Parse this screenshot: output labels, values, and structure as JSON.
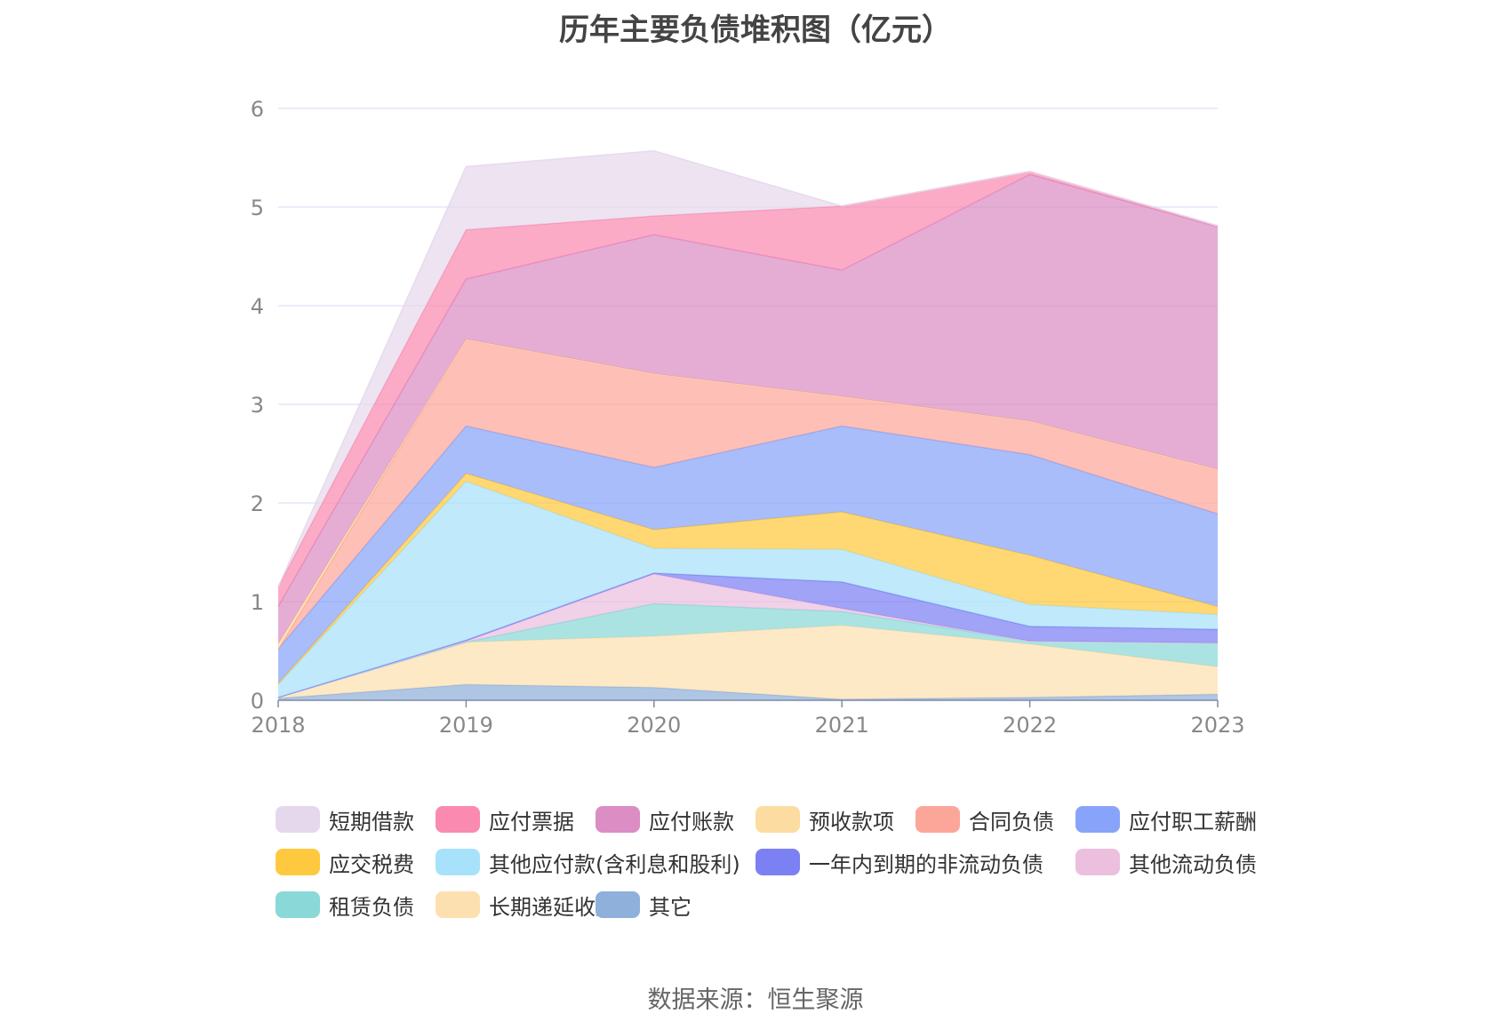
{
  "chart_data": {
    "type": "area",
    "title": "历年主要负债堆积图（亿元）",
    "source": "数据来源：恒生聚源",
    "x": [
      "2018",
      "2019",
      "2020",
      "2021",
      "2022",
      "2023"
    ],
    "ylim": [
      0,
      6
    ],
    "yticks": [
      "0",
      "1",
      "2",
      "3",
      "4",
      "5",
      "6"
    ],
    "grid": true,
    "legend_position": "bottom",
    "series": [
      {
        "name": "其它",
        "color": "#8fb0da",
        "values": [
          0.02,
          0.16,
          0.13,
          0.01,
          0.03,
          0.06
        ]
      },
      {
        "name": "长期递延收益",
        "color": "#fde0b0",
        "values": [
          0.01,
          0.43,
          0.52,
          0.75,
          0.54,
          0.28
        ]
      },
      {
        "name": "租赁负债",
        "color": "#8ad8d8",
        "values": [
          0.0,
          0.0,
          0.33,
          0.14,
          0.03,
          0.24
        ]
      },
      {
        "name": "其他流动负债",
        "color": "#ecbfdf",
        "values": [
          0.0,
          0.01,
          0.3,
          0.03,
          0.0,
          0.0
        ]
      },
      {
        "name": "一年内到期的非流动负债",
        "color": "#7b80f2",
        "values": [
          0.0,
          0.01,
          0.01,
          0.27,
          0.15,
          0.14
        ]
      },
      {
        "name": "其他应付款(含利息和股利)",
        "color": "#a8e2fa",
        "values": [
          0.13,
          1.61,
          0.25,
          0.33,
          0.22,
          0.15
        ]
      },
      {
        "name": "应交税费",
        "color": "#ffc93f",
        "values": [
          0.01,
          0.08,
          0.19,
          0.38,
          0.5,
          0.08
        ]
      },
      {
        "name": "应付职工薪酬",
        "color": "#88a4fa",
        "values": [
          0.35,
          0.48,
          0.63,
          0.87,
          1.02,
          0.94
        ]
      },
      {
        "name": "合同负债",
        "color": "#fca69a",
        "values": [
          0.0,
          0.88,
          0.95,
          0.3,
          0.34,
          0.45
        ]
      },
      {
        "name": "预收款项",
        "color": "#fcdca0",
        "values": [
          0.05,
          0.0,
          0.0,
          0.0,
          0.0,
          0.0
        ]
      },
      {
        "name": "应付账款",
        "color": "#db8dc4",
        "values": [
          0.38,
          0.61,
          1.41,
          1.28,
          2.5,
          2.46
        ]
      },
      {
        "name": "应付票据",
        "color": "#fa8ab0",
        "values": [
          0.2,
          0.5,
          0.19,
          0.65,
          0.03,
          0.01
        ]
      },
      {
        "name": "短期借款",
        "color": "#e6d8ec",
        "values": [
          0.0,
          0.64,
          0.66,
          0.0,
          0.0,
          0.0
        ]
      }
    ],
    "legend_order": [
      "短期借款",
      "应付票据",
      "应付账款",
      "预收款项",
      "合同负债",
      "应付职工薪酬",
      "应交税费",
      "其他应付款(含利息和股利)",
      "一年内到期的非流动负债",
      "其他流动负债",
      "租赁负债",
      "长期递延收益",
      "其它"
    ]
  }
}
